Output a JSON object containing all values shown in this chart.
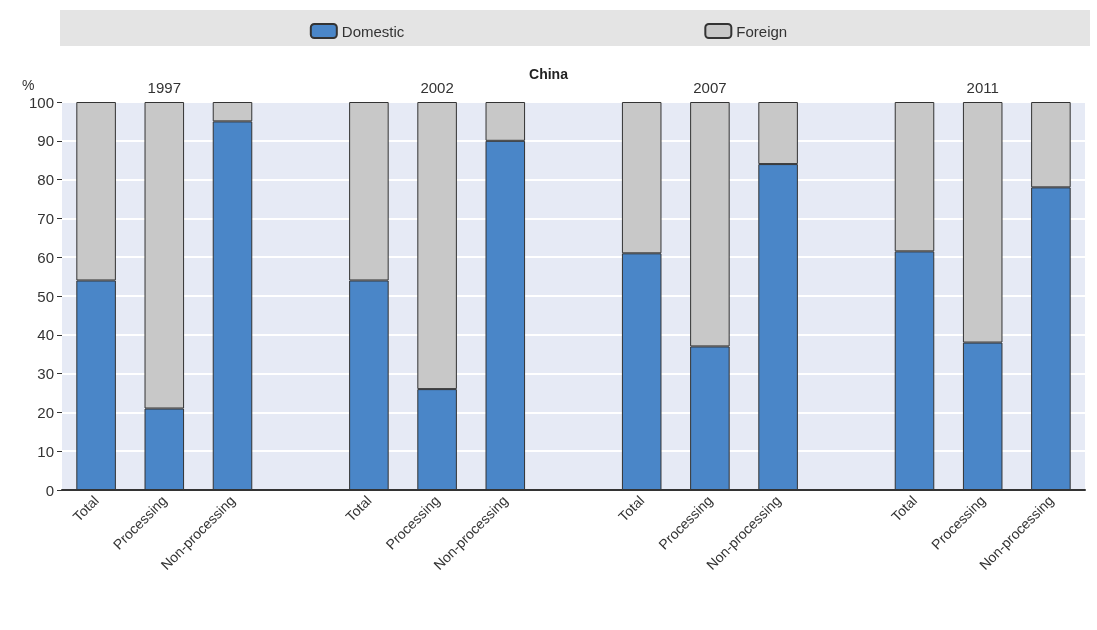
{
  "chart_data": {
    "type": "bar",
    "stacked": true,
    "title": "China",
    "ylabel": "%",
    "categories": [
      "Total",
      "Processing",
      "Non-processing",
      null,
      "Total",
      "Processing",
      "Non-processing",
      null,
      "Total",
      "Processing",
      "Non-processing",
      null,
      "Total",
      "Processing",
      "Non-processing"
    ],
    "series": [
      {
        "name": "Domestic",
        "color": "#4a86c8",
        "values": [
          54,
          21,
          95,
          null,
          54,
          26,
          90,
          null,
          61,
          37,
          84,
          null,
          61.5,
          38,
          78
        ]
      },
      {
        "name": "Foreign",
        "color": "#c8c8c8",
        "values": [
          46,
          79,
          5,
          null,
          46,
          74,
          10,
          null,
          39,
          63,
          16,
          null,
          38.5,
          62,
          22
        ]
      }
    ],
    "annotations": [
      "1997",
      "2002",
      "2007",
      "2011"
    ],
    "ylim": [
      0,
      100
    ],
    "yticks": [
      0,
      10,
      20,
      30,
      40,
      50,
      60,
      70,
      80,
      90,
      100
    ],
    "grid": "y",
    "legend": "top"
  }
}
